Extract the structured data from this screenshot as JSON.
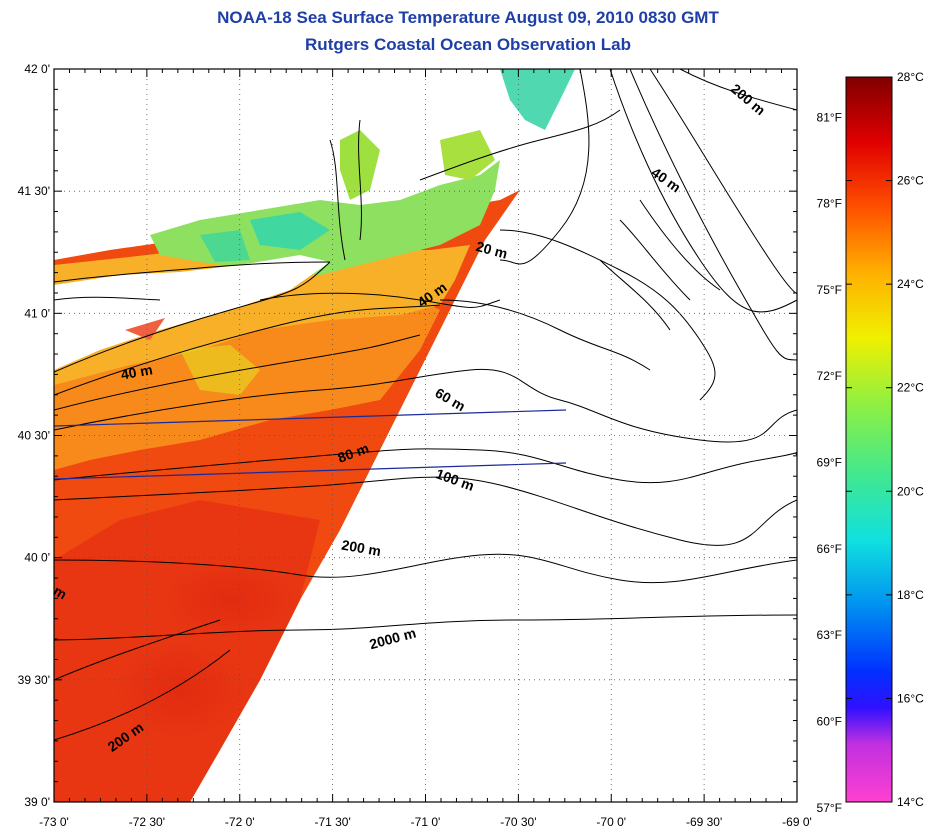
{
  "header": {
    "title": "NOAA-18 Sea Surface Temperature August 09, 2010 0830 GMT",
    "subtitle": "Rutgers Coastal Ocean Observation Lab"
  },
  "map": {
    "lon_range": [
      -73.0,
      -69.0
    ],
    "lat_range": [
      39.0,
      42.0
    ],
    "lon_ticks": [
      {
        "v": -73.0,
        "label": "-73 0'"
      },
      {
        "v": -72.5,
        "label": "-72 30'"
      },
      {
        "v": -72.0,
        "label": "-72 0'"
      },
      {
        "v": -71.5,
        "label": "-71 30'"
      },
      {
        "v": -71.0,
        "label": "-71 0'"
      },
      {
        "v": -70.5,
        "label": "-70 30'"
      },
      {
        "v": -70.0,
        "label": "-70 0'"
      },
      {
        "v": -69.5,
        "label": "-69 30'"
      },
      {
        "v": -69.0,
        "label": "-69 0'"
      }
    ],
    "lat_ticks": [
      {
        "v": 42.0,
        "label": "42 0'"
      },
      {
        "v": 41.5,
        "label": "41 30'"
      },
      {
        "v": 41.0,
        "label": "41 0'"
      },
      {
        "v": 40.5,
        "label": "40 30'"
      },
      {
        "v": 40.0,
        "label": "40 0'"
      },
      {
        "v": 39.5,
        "label": "39 30'"
      },
      {
        "v": 39.0,
        "label": "39 0'"
      }
    ],
    "depth_labels": [
      {
        "text": "200 m",
        "lon": -69.28,
        "lat": 41.86,
        "rot": 40
      },
      {
        "text": "40 m",
        "lon": -69.72,
        "lat": 41.53,
        "rot": 35
      },
      {
        "text": "20 m",
        "lon": -70.65,
        "lat": 41.24,
        "rot": 15
      },
      {
        "text": "40 m",
        "lon": -70.95,
        "lat": 41.06,
        "rot": -35
      },
      {
        "text": "40 m",
        "lon": -72.55,
        "lat": 40.74,
        "rot": -10
      },
      {
        "text": "60 m",
        "lon": -70.88,
        "lat": 40.63,
        "rot": 30
      },
      {
        "text": "80 m",
        "lon": -71.38,
        "lat": 40.41,
        "rot": -20
      },
      {
        "text": "100 m",
        "lon": -70.85,
        "lat": 40.3,
        "rot": 20
      },
      {
        "text": "200 m",
        "lon": -71.35,
        "lat": 40.02,
        "rot": 10
      },
      {
        "text": "2000 m",
        "lon": -71.17,
        "lat": 39.65,
        "rot": -15
      },
      {
        "text": "200 m",
        "lon": -72.6,
        "lat": 39.25,
        "rot": -35
      },
      {
        "text": "m",
        "lon": -72.98,
        "lat": 39.84,
        "rot": 30
      }
    ]
  },
  "colorbar": {
    "celsius": [
      {
        "v": 28,
        "label": "28°C"
      },
      {
        "v": 26,
        "label": "26°C"
      },
      {
        "v": 24,
        "label": "24°C"
      },
      {
        "v": 22,
        "label": "22°C"
      },
      {
        "v": 20,
        "label": "20°C"
      },
      {
        "v": 18,
        "label": "18°C"
      },
      {
        "v": 16,
        "label": "16°C"
      },
      {
        "v": 14,
        "label": "14°C"
      }
    ],
    "fahrenheit": [
      {
        "v": 81,
        "label": "81°F"
      },
      {
        "v": 78,
        "label": "78°F"
      },
      {
        "v": 75,
        "label": "75°F"
      },
      {
        "v": 72,
        "label": "72°F"
      },
      {
        "v": 69,
        "label": "69°F"
      },
      {
        "v": 66,
        "label": "66°F"
      },
      {
        "v": 63,
        "label": "63°F"
      },
      {
        "v": 60,
        "label": "60°F"
      },
      {
        "v": 57,
        "label": "57°F"
      }
    ],
    "range_c": [
      14,
      28
    ]
  },
  "colors": {
    "title": "#1f3fa8",
    "sst_warm": "#f04a10",
    "sst_hot": "#e82810",
    "sst_mid": "#f89020",
    "sst_cool": "#8ee060",
    "sst_cooler": "#40d8a0",
    "track_line": "#1a2a9a"
  }
}
